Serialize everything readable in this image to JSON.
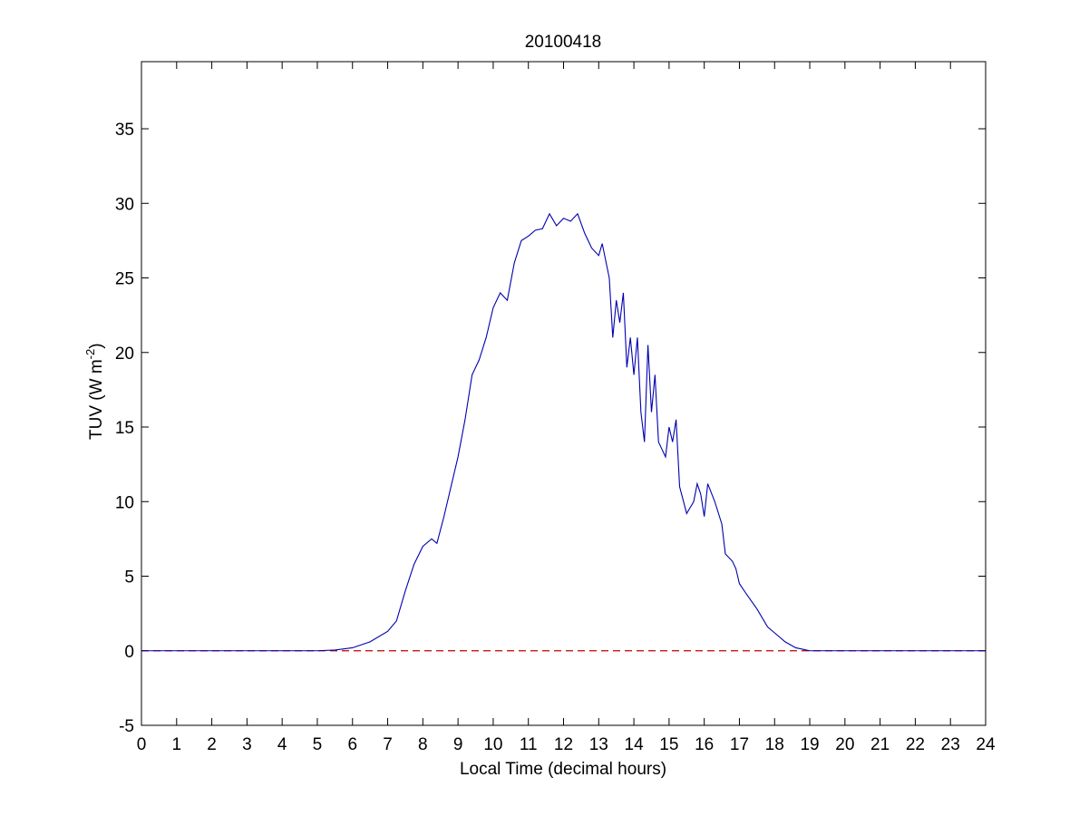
{
  "chart_data": {
    "type": "line",
    "title": "20100418",
    "xlabel": "Local Time (decimal hours)",
    "ylabel": {
      "main": "TUV (W m",
      "superscript": "-2",
      "close": ")"
    },
    "x": [
      0,
      5,
      5.5,
      6,
      6.5,
      7,
      7.25,
      7.5,
      7.75,
      8,
      8.25,
      8.4,
      8.6,
      8.8,
      9,
      9.2,
      9.4,
      9.6,
      9.8,
      10,
      10.2,
      10.4,
      10.6,
      10.8,
      11,
      11.2,
      11.4,
      11.6,
      11.8,
      12,
      12.2,
      12.4,
      12.6,
      12.8,
      13,
      13.1,
      13.3,
      13.4,
      13.5,
      13.6,
      13.7,
      13.8,
      13.9,
      14,
      14.1,
      14.2,
      14.3,
      14.4,
      14.5,
      14.6,
      14.7,
      14.8,
      14.9,
      15,
      15.1,
      15.2,
      15.3,
      15.5,
      15.7,
      15.8,
      15.9,
      16,
      16.1,
      16.3,
      16.5,
      16.6,
      16.8,
      16.9,
      17,
      17.2,
      17.5,
      17.8,
      18,
      18.3,
      18.6,
      19,
      24
    ],
    "series": [
      {
        "name": "TUV",
        "color": "#0000b0",
        "values": [
          0,
          0,
          0.05,
          0.2,
          0.6,
          1.3,
          2,
          4,
          5.8,
          7,
          7.5,
          7.2,
          9,
          11,
          13,
          15.5,
          18.5,
          19.5,
          21,
          23,
          24,
          23.5,
          26,
          27.5,
          27.8,
          28.2,
          28.3,
          29.3,
          28.5,
          29,
          28.8,
          29.3,
          28,
          27,
          26.5,
          27.3,
          25,
          21,
          23.5,
          22,
          24,
          19,
          21,
          18.5,
          21,
          16,
          14,
          20.5,
          16,
          18.5,
          14,
          13.5,
          13,
          15,
          14,
          15.5,
          11,
          9.2,
          10,
          11.2,
          10.5,
          9,
          11.2,
          10,
          8.5,
          6.5,
          6,
          5.5,
          4.5,
          3.8,
          2.8,
          1.6,
          1.2,
          0.6,
          0.2,
          0,
          0
        ]
      }
    ],
    "hlines": [
      {
        "y": 0,
        "color": "#c00000",
        "dashed": true
      }
    ],
    "xlim": [
      0,
      24
    ],
    "xticks": [
      0,
      1,
      2,
      3,
      4,
      5,
      6,
      7,
      8,
      9,
      10,
      11,
      12,
      13,
      14,
      15,
      16,
      17,
      18,
      19,
      20,
      21,
      22,
      23,
      24
    ],
    "ylim": [
      -5,
      39.5
    ],
    "yticks": [
      -5,
      0,
      5,
      10,
      15,
      20,
      25,
      30,
      35
    ],
    "grid": false
  }
}
